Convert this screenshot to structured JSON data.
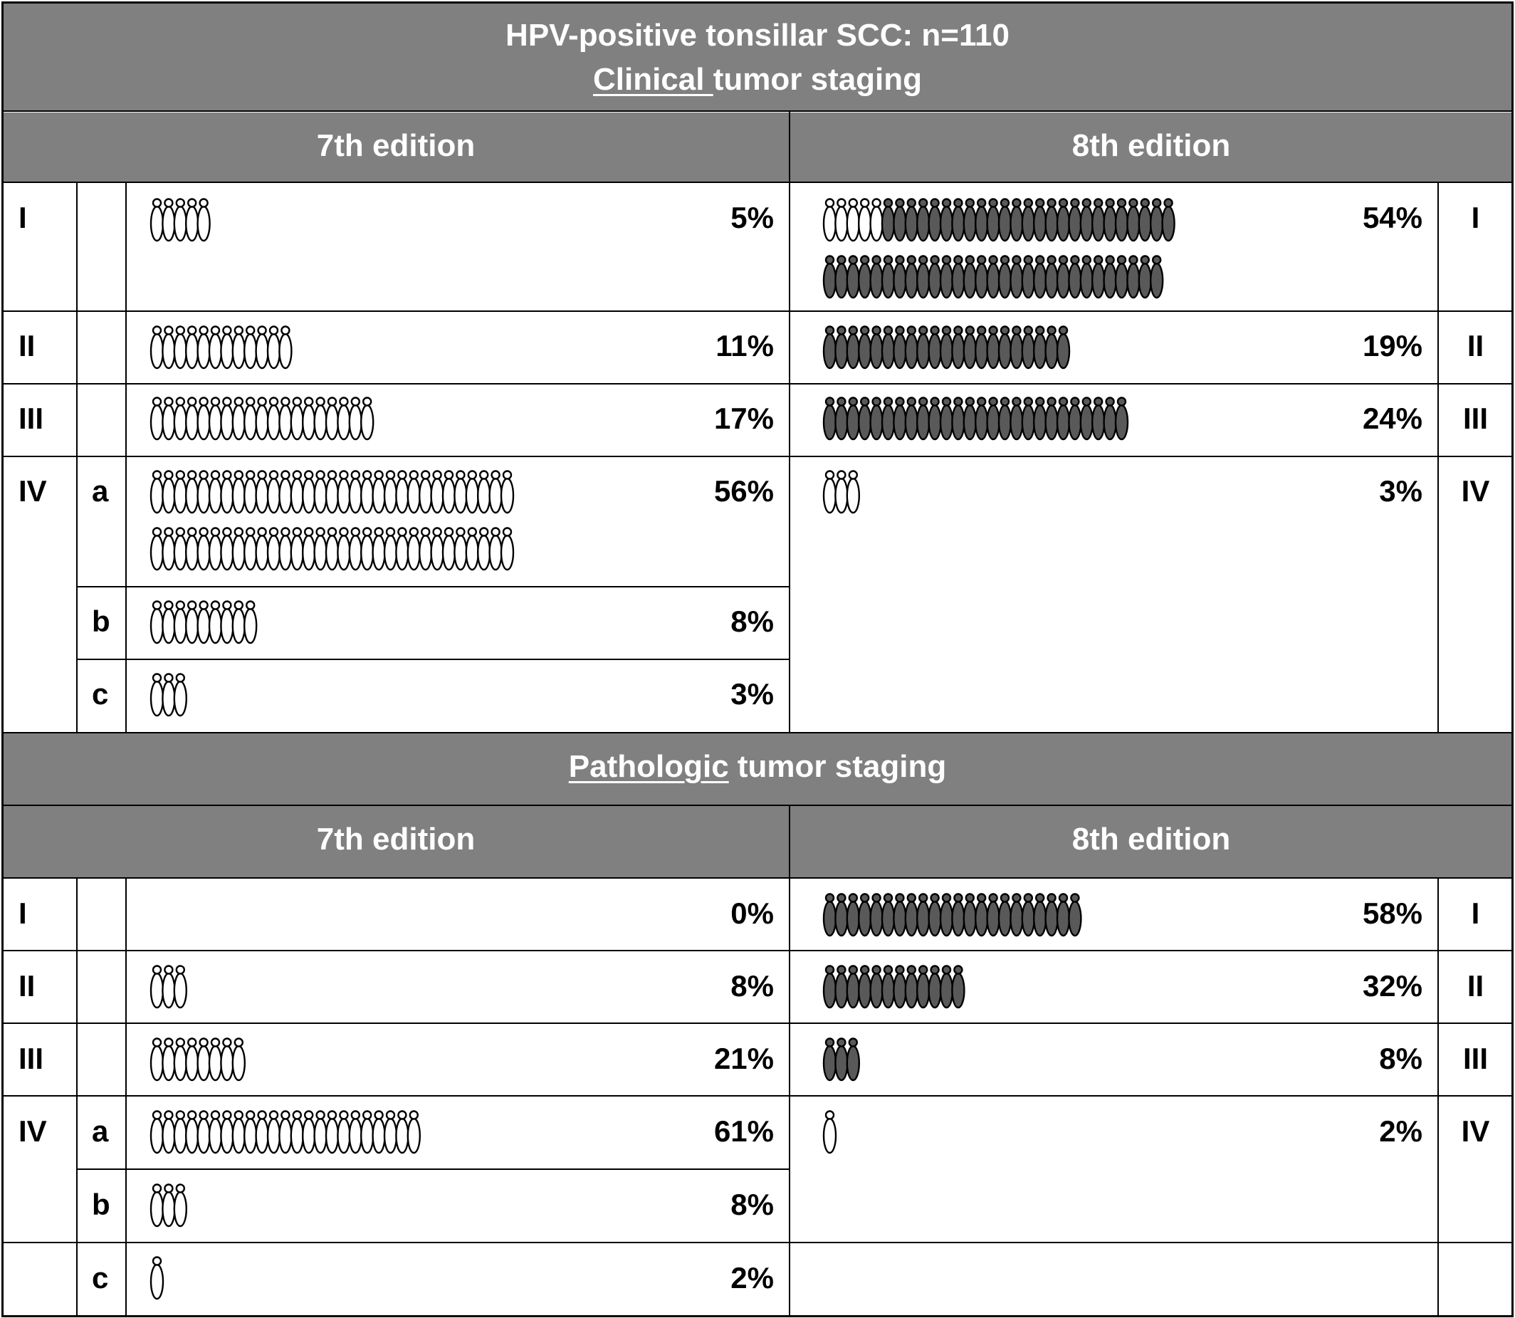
{
  "title": "HPV-positive tonsillar SCC: n=110",
  "colors": {
    "header_bg": "#808080",
    "header_text": "#ffffff",
    "grid": "#000000",
    "filled_icon": "#595959",
    "open_icon": "#ffffff"
  },
  "sections": [
    {
      "label_underlined": "Clinical ",
      "label_rest": "tumor staging",
      "edition_left": "7th edition",
      "edition_right": "8th edition",
      "stage_labels": [
        "I",
        "II",
        "III",
        "IV"
      ],
      "sub_labels": [
        "a",
        "b",
        "c"
      ]
    },
    {
      "label_underlined": "Pathologic",
      "label_rest": " tumor staging",
      "edition_left": "7th edition",
      "edition_right": "8th edition",
      "stage_labels": [
        "I",
        "II",
        "III",
        "IV"
      ],
      "sub_labels": [
        "a",
        "b",
        "c"
      ]
    }
  ],
  "chart_data": [
    {
      "type": "table",
      "staging": "Clinical",
      "edition": "7th edition",
      "rows": [
        {
          "stage": "I",
          "sub": "",
          "percent": "5%",
          "icons": 5,
          "filled_icons": 0
        },
        {
          "stage": "II",
          "sub": "",
          "percent": "11%",
          "icons": 12,
          "filled_icons": 0
        },
        {
          "stage": "III",
          "sub": "",
          "percent": "17%",
          "icons": 19,
          "filled_icons": 0
        },
        {
          "stage": "IV",
          "sub": "a",
          "percent": "56%",
          "icons": 62,
          "filled_icons": 0
        },
        {
          "stage": "IV",
          "sub": "b",
          "percent": "8%",
          "icons": 9,
          "filled_icons": 0
        },
        {
          "stage": "IV",
          "sub": "c",
          "percent": "3%",
          "icons": 3,
          "filled_icons": 0
        }
      ]
    },
    {
      "type": "table",
      "staging": "Clinical",
      "edition": "8th edition",
      "rows": [
        {
          "stage": "I",
          "percent": "54%",
          "icons": 59,
          "filled_icons": 54
        },
        {
          "stage": "II",
          "percent": "19%",
          "icons": 21,
          "filled_icons": 21
        },
        {
          "stage": "III",
          "percent": "24%",
          "icons": 26,
          "filled_icons": 26
        },
        {
          "stage": "IV",
          "percent": "3%",
          "icons": 3,
          "filled_icons": 0
        }
      ]
    },
    {
      "type": "table",
      "staging": "Pathologic",
      "edition": "7th edition",
      "rows": [
        {
          "stage": "I",
          "sub": "",
          "percent": "0%",
          "icons": 0,
          "filled_icons": 0
        },
        {
          "stage": "II",
          "sub": "",
          "percent": "8%",
          "icons": 3,
          "filled_icons": 0
        },
        {
          "stage": "III",
          "sub": "",
          "percent": "21%",
          "icons": 8,
          "filled_icons": 0
        },
        {
          "stage": "IV",
          "sub": "a",
          "percent": "61%",
          "icons": 23,
          "filled_icons": 0
        },
        {
          "stage": "IV",
          "sub": "b",
          "percent": "8%",
          "icons": 3,
          "filled_icons": 0
        },
        {
          "stage": "IV",
          "sub": "c",
          "percent": "2%",
          "icons": 1,
          "filled_icons": 0
        }
      ]
    },
    {
      "type": "table",
      "staging": "Pathologic",
      "edition": "8th edition",
      "rows": [
        {
          "stage": "I",
          "percent": "58%",
          "icons": 22,
          "filled_icons": 22
        },
        {
          "stage": "II",
          "percent": "32%",
          "icons": 12,
          "filled_icons": 12
        },
        {
          "stage": "III",
          "percent": "8%",
          "icons": 3,
          "filled_icons": 3
        },
        {
          "stage": "IV",
          "percent": "2%",
          "icons": 1,
          "filled_icons": 0
        }
      ]
    }
  ]
}
